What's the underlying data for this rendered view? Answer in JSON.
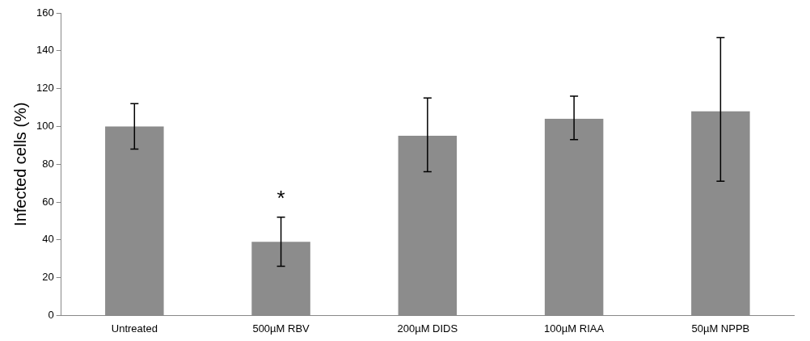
{
  "chart_data": {
    "type": "bar",
    "ylabel": "Infected cells (%)",
    "categories": [
      "Untreated",
      "500µM RBV",
      "200µM DIDS",
      "100µM RIAA",
      "50µM NPPB"
    ],
    "values": [
      100,
      39,
      95,
      104,
      108
    ],
    "errors": [
      [
        88,
        112
      ],
      [
        26,
        52
      ],
      [
        76,
        115
      ],
      [
        93,
        116
      ],
      [
        71,
        147
      ]
    ],
    "color": "#8c8c8c",
    "ylim": [
      0,
      160
    ],
    "yticks": [
      0,
      20,
      40,
      60,
      80,
      100,
      120,
      140,
      160
    ],
    "grid": false,
    "legend": false,
    "annotations": [
      {
        "text": "*",
        "x": "500µM RBV",
        "y": 52
      }
    ]
  }
}
